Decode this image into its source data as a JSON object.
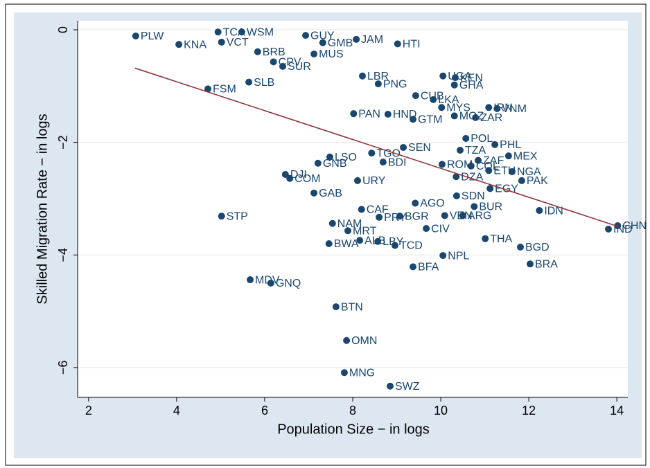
{
  "chart_data": {
    "type": "scatter",
    "x_label": "Population Size − in logs",
    "y_label": "Skilled Migration Rate − in logs",
    "color": "#1a476f",
    "label_color": "#1a476f",
    "xlim": [
      1.75,
      14.25
    ],
    "ylim": [
      -6.53,
      0.16
    ],
    "xticks": [
      2,
      4,
      6,
      8,
      10,
      12,
      14
    ],
    "yticks": [
      {
        "value": 0,
        "label": "0"
      },
      {
        "value": -2,
        "label": "−2"
      },
      {
        "value": -4,
        "label": "−4"
      },
      {
        "value": -6,
        "label": "−6"
      }
    ],
    "grid": true,
    "labels": [
      "PLW",
      "TCA",
      "WSM",
      "GUY",
      "GMB",
      "JAM",
      "HTI",
      "KNA",
      "VCT",
      "BRB",
      "CPV",
      "SUR",
      "MUS",
      "FSM",
      "SLB",
      "LBR",
      "PNG",
      "UGA",
      "KEN",
      "GHA",
      "CUB",
      "LKA",
      "MYS",
      "IRN",
      "VNM",
      "MOZ",
      "ZAR",
      "PAN",
      "HND",
      "GTM",
      "POL",
      "PHL",
      "MEX",
      "SEN",
      "TZA",
      "ZAF",
      "LSO",
      "GNB",
      "TGO",
      "BDI",
      "ROM",
      "COL",
      "ETH",
      "NGA",
      "PAK",
      "EGY",
      "DJI",
      "COM",
      "GAB",
      "URY",
      "DZA",
      "AGO",
      "SDN",
      "BUR",
      "IDN",
      "CHN",
      "IND",
      "STP",
      "CAF",
      "BGR",
      "PRY",
      "VEN",
      "ARG",
      "NAM",
      "CIV",
      "MRT",
      "THA",
      "ALB",
      "LBY",
      "BWA",
      "TCD",
      "BGD",
      "NPL",
      "BRA",
      "BFA",
      "MDV",
      "GNQ",
      "BTN",
      "OMN",
      "MNG",
      "SWZ"
    ],
    "x": [
      3.07,
      4.94,
      5.48,
      6.93,
      7.32,
      8.08,
      9.02,
      4.05,
      5.02,
      5.84,
      6.2,
      6.41,
      7.12,
      4.71,
      5.64,
      8.22,
      8.58,
      10.05,
      10.33,
      10.31,
      9.43,
      9.83,
      10.02,
      11.09,
      11.28,
      10.31,
      10.79,
      8.02,
      8.8,
      9.37,
      10.57,
      11.23,
      11.54,
      9.15,
      10.44,
      10.85,
      7.48,
      7.21,
      8.43,
      8.69,
      10.03,
      10.69,
      11.09,
      11.62,
      11.84,
      11.12,
      6.47,
      6.57,
      7.12,
      8.11,
      10.35,
      9.42,
      10.36,
      10.76,
      12.24,
      14.02,
      13.81,
      5.02,
      8.2,
      9.07,
      8.6,
      10.09,
      10.5,
      7.54,
      9.67,
      7.89,
      11.01,
      8.16,
      8.57,
      7.46,
      8.96,
      11.81,
      10.05,
      12.03,
      9.37,
      5.67,
      6.14,
      7.62,
      7.86,
      7.81,
      8.85
    ],
    "y": [
      -0.11,
      -0.04,
      -0.04,
      -0.1,
      -0.23,
      -0.17,
      -0.25,
      -0.26,
      -0.22,
      -0.39,
      -0.57,
      -0.65,
      -0.43,
      -1.05,
      -0.93,
      -0.82,
      -0.96,
      -0.82,
      -0.85,
      -0.98,
      -1.17,
      -1.24,
      -1.38,
      -1.38,
      -1.4,
      -1.53,
      -1.56,
      -1.49,
      -1.5,
      -1.59,
      -1.93,
      -2.04,
      -2.24,
      -2.09,
      -2.14,
      -2.32,
      -2.26,
      -2.37,
      -2.19,
      -2.35,
      -2.39,
      -2.42,
      -2.5,
      -2.52,
      -2.68,
      -2.82,
      -2.57,
      -2.64,
      -2.9,
      -2.68,
      -2.61,
      -3.08,
      -2.95,
      -3.14,
      -3.21,
      -3.48,
      -3.54,
      -3.31,
      -3.19,
      -3.31,
      -3.33,
      -3.3,
      -3.3,
      -3.44,
      -3.53,
      -3.57,
      -3.71,
      -3.74,
      -3.76,
      -3.8,
      -3.83,
      -3.86,
      -4.01,
      -4.16,
      -4.21,
      -4.44,
      -4.5,
      -4.92,
      -5.52,
      -6.09,
      -6.33
    ],
    "fit": {
      "color": "#90353b",
      "x": [
        3.05,
        14.05
      ],
      "y": [
        -0.68,
        -3.5
      ]
    }
  }
}
